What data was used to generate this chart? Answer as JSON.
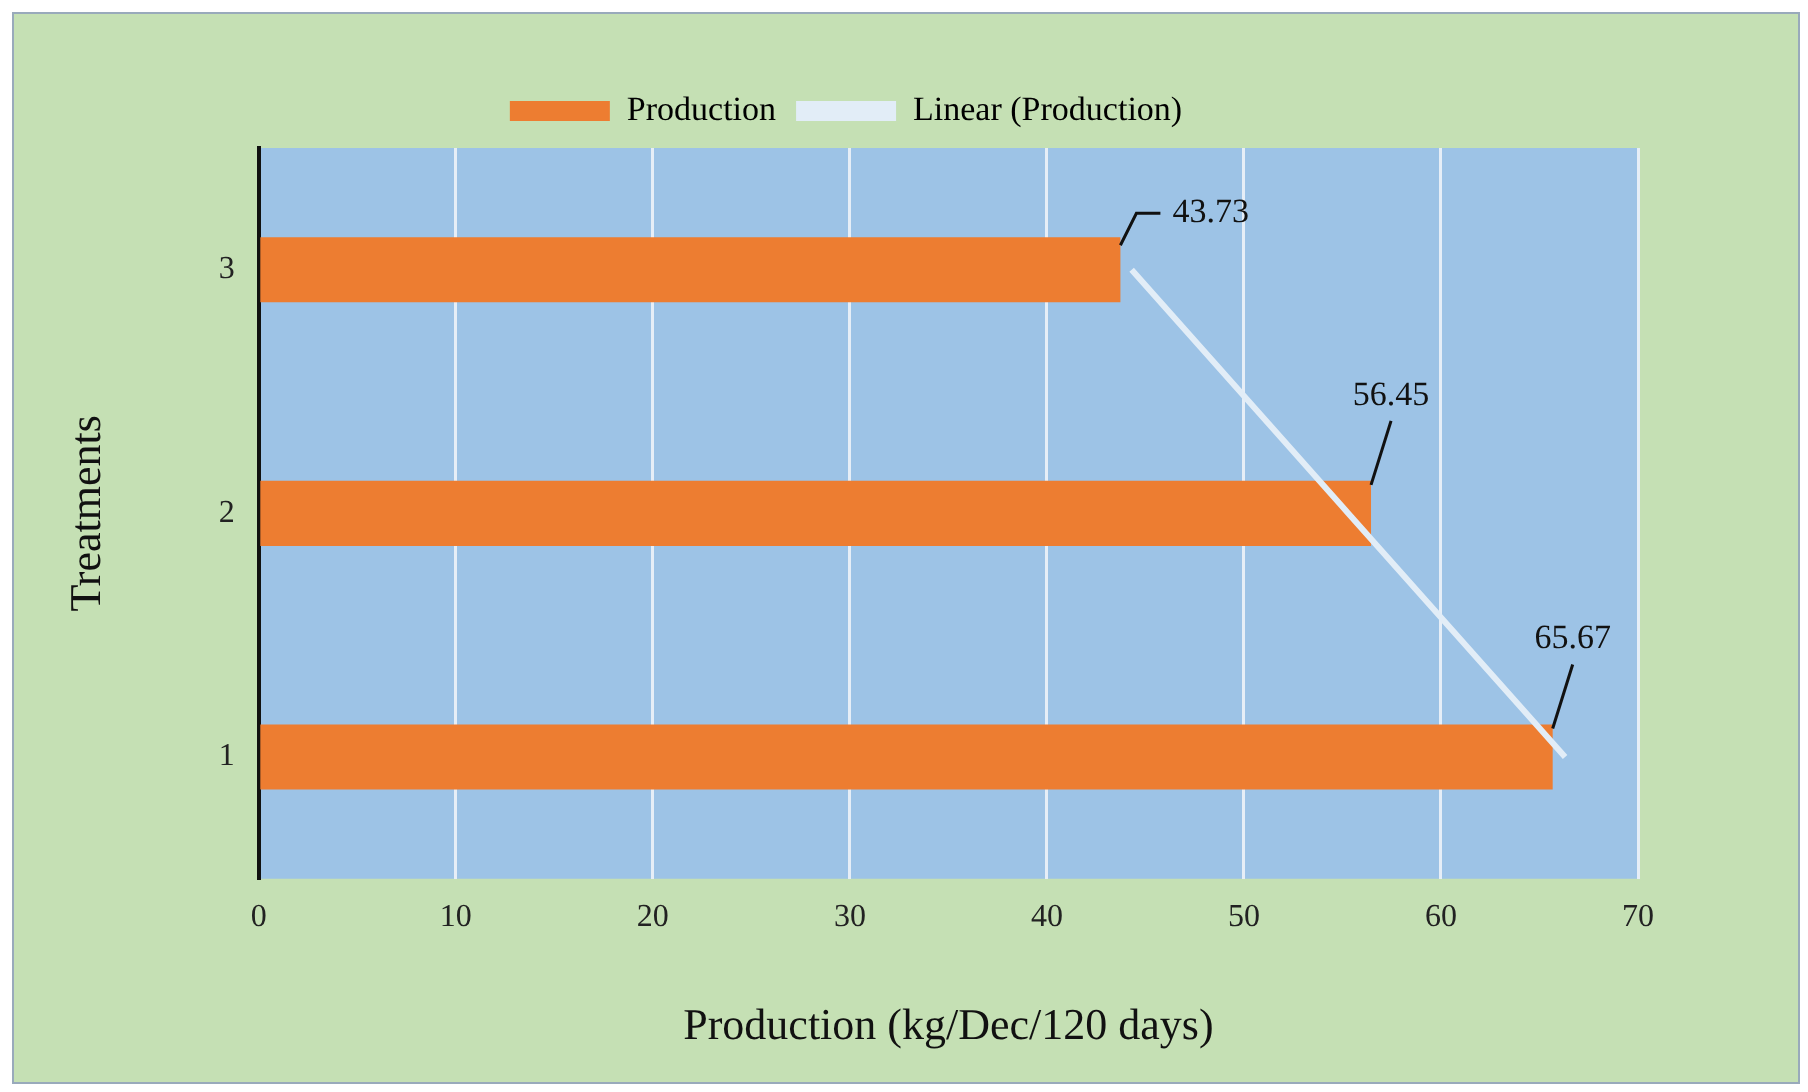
{
  "chart_data": {
    "type": "bar",
    "orientation": "horizontal",
    "xlabel": "Production (kg/Dec/120 days)",
    "ylabel": "Treatments",
    "categories": [
      "3",
      "2",
      "1"
    ],
    "series": [
      {
        "name": "Production",
        "color": "#ed7d31",
        "values": [
          43.73,
          56.45,
          65.67
        ],
        "value_labels": [
          "43.73",
          "56.45",
          "65.67"
        ]
      },
      {
        "name": "Linear (Production)",
        "type": "line",
        "color": "#e2edf7",
        "values": [
          44.3,
          55.3,
          66.3
        ]
      }
    ],
    "xlim": [
      0,
      70
    ],
    "xticks": [
      0,
      10,
      20,
      30,
      40,
      50,
      60,
      70
    ],
    "grid": "x",
    "legend": "top"
  }
}
